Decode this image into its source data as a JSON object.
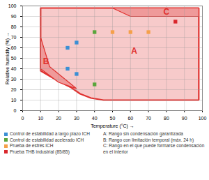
{
  "chart_data": {
    "type": "scatter",
    "xlabel": "Temperature (°C)",
    "ylabel": "Relative humidity (%)",
    "xlim": [
      0,
      100
    ],
    "ylim": [
      0,
      100
    ],
    "xticks": [
      0,
      10,
      20,
      30,
      40,
      50,
      60,
      70,
      80,
      90,
      100
    ],
    "yticks": [
      0,
      10,
      20,
      30,
      40,
      50,
      60,
      70,
      80,
      90,
      100
    ],
    "grid": true,
    "marker": "square",
    "series": [
      {
        "name": "Control de estabilidad a largo plazo ICH",
        "color": "#3b8fd4",
        "x": [
          25,
          30,
          25,
          30
        ],
        "values": [
          60,
          65,
          40,
          35
        ]
      },
      {
        "name": "Control de estabilidad acelerado ICH",
        "color": "#5aa63c",
        "x": [
          40,
          40
        ],
        "values": [
          75,
          25
        ]
      },
      {
        "name": "Prueba de estrés ICH",
        "color": "#f5a04a",
        "x": [
          50,
          60,
          70
        ],
        "values": [
          75,
          75,
          75
        ]
      },
      {
        "name": "Prueba THB industrial (85/85)",
        "color": "#d9262c",
        "x": [
          85
        ],
        "values": [
          85
        ]
      }
    ],
    "regions": [
      {
        "label": "A",
        "description": "A: Rango sin condensación garantizada",
        "color": "#f7caca",
        "polygon": [
          [
            10,
            98
          ],
          [
            98,
            98
          ],
          [
            98,
            10
          ],
          [
            45,
            10
          ],
          [
            38,
            12
          ],
          [
            32,
            16
          ],
          [
            27,
            22
          ],
          [
            20,
            28
          ],
          [
            10,
            38
          ]
        ],
        "label_x": 62,
        "label_y": 57
      },
      {
        "label": "B",
        "description": "B: Rango con limitación temporal (máx. 24 h)",
        "color": "#ef9a9a",
        "polygon": [
          [
            10,
            70
          ],
          [
            15,
            42
          ],
          [
            30,
            21
          ],
          [
            20,
            27
          ],
          [
            10,
            40
          ]
        ],
        "label_x": 13,
        "label_y": 47
      },
      {
        "label": "C",
        "description": "C: Rango en el que puede formarse condensación en el interior",
        "color": "#ef9a9a",
        "polygon": [
          [
            50,
            98
          ],
          [
            98,
            98
          ],
          [
            98,
            90
          ],
          [
            60,
            90
          ]
        ],
        "label_x": 80,
        "label_y": 94
      }
    ]
  }
}
